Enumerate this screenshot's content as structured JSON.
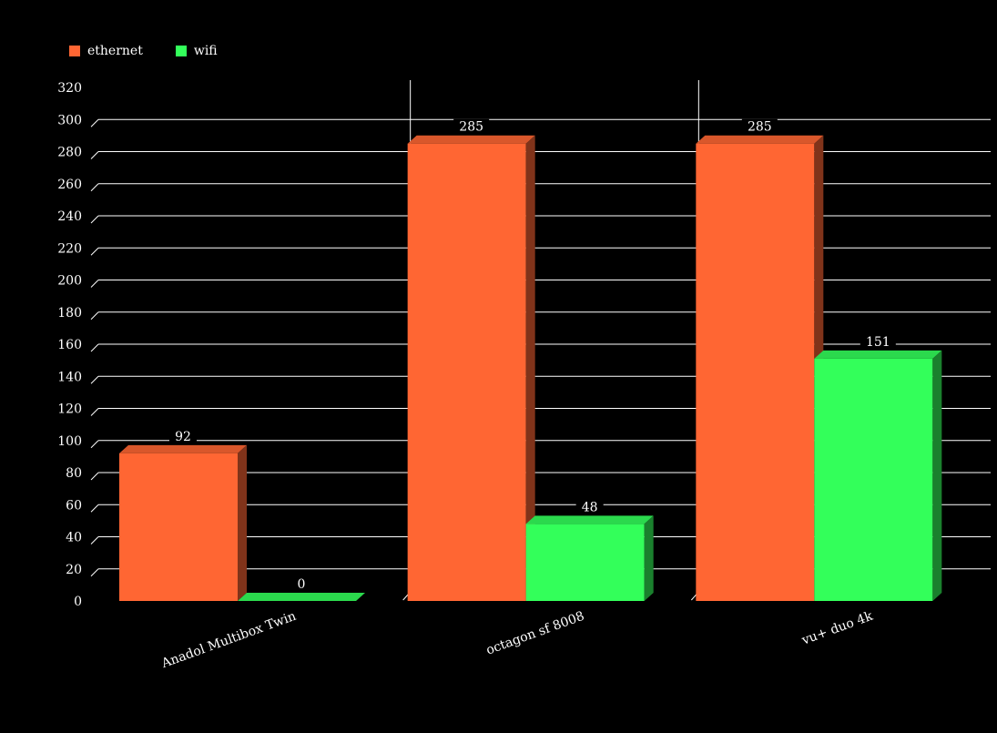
{
  "legend": [
    {
      "label": "ethernet",
      "color": "#ff6633"
    },
    {
      "label": "wifi",
      "color": "#33ff5a"
    }
  ],
  "chart_data": {
    "type": "bar",
    "categories": [
      "Anadol Multibox Twin",
      "octagon sf 8008",
      "vu+ duo 4k"
    ],
    "series": [
      {
        "name": "ethernet",
        "color": "#ff6633",
        "values": [
          92,
          285,
          285
        ]
      },
      {
        "name": "wifi",
        "color": "#33ff5a",
        "values": [
          0,
          48,
          151
        ]
      }
    ],
    "yticks": [
      "0",
      "20",
      "40",
      "60",
      "80",
      "100",
      "120",
      "140",
      "160",
      "180",
      "200",
      "220",
      "240",
      "260",
      "280",
      "300",
      "320"
    ],
    "ylim": [
      0,
      320
    ],
    "grid": true,
    "legend_position": "top-left",
    "title": "",
    "xlabel": "",
    "ylabel": ""
  }
}
